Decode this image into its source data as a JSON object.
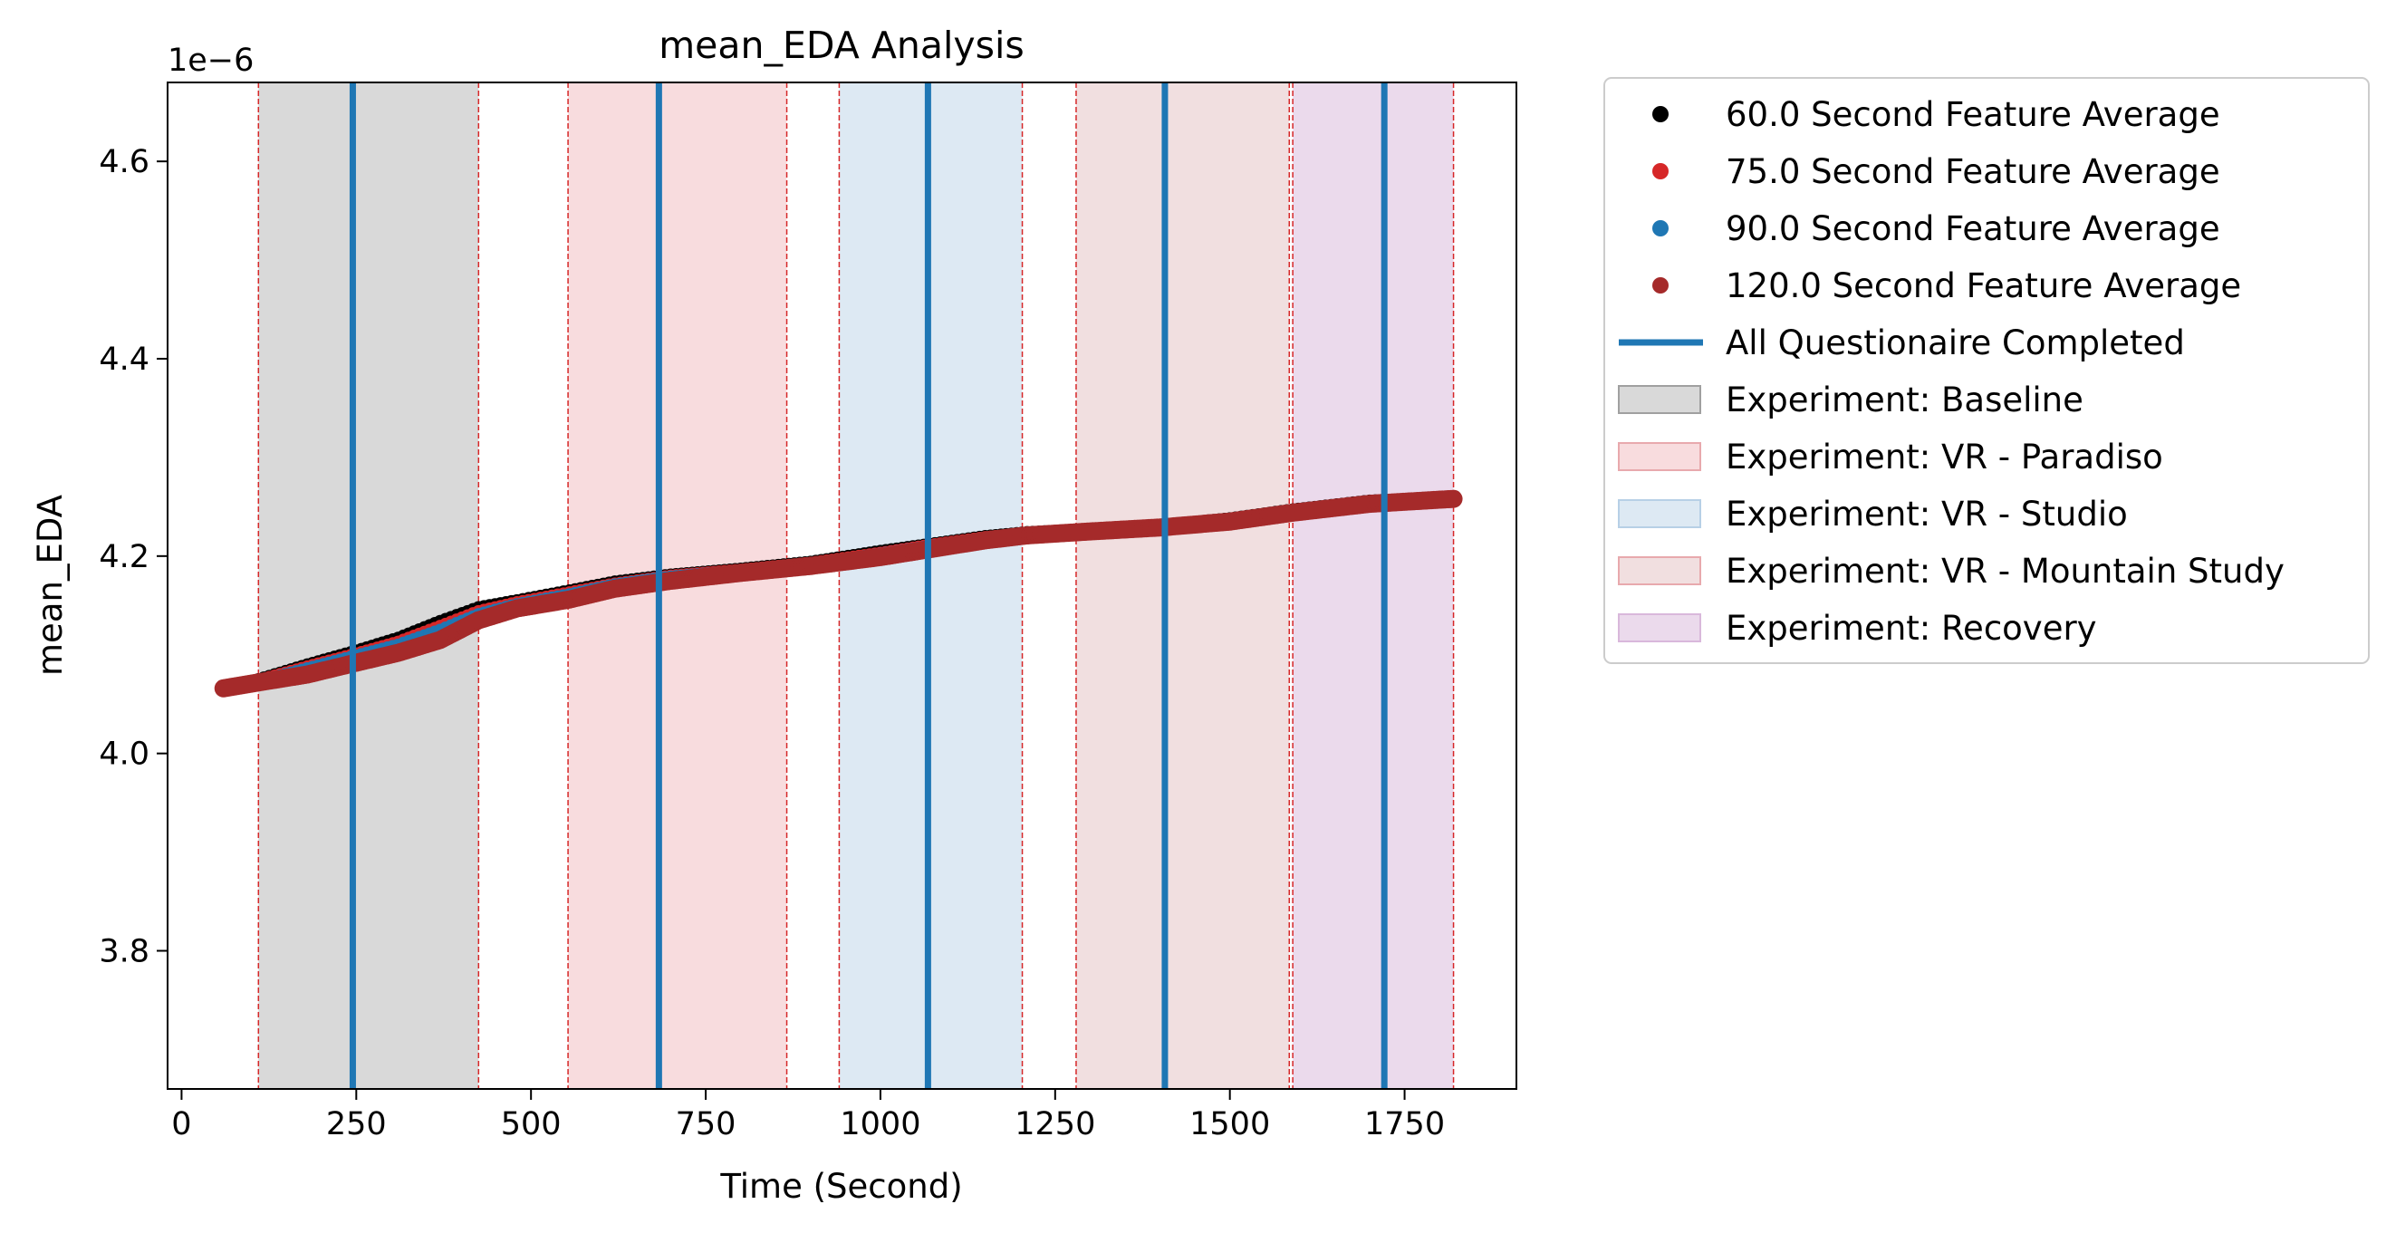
{
  "chart_data": {
    "type": "line",
    "title": "mean_EDA Analysis",
    "xlabel": "Time (Second)",
    "ylabel": "mean_EDA",
    "y_offset_label": "1e−6",
    "xlim": [
      -20,
      1910
    ],
    "ylim": [
      3.66e-06,
      4.68e-06
    ],
    "x_ticks": [
      0,
      250,
      500,
      750,
      1000,
      1250,
      1500,
      1750
    ],
    "x_tick_labels": [
      "0",
      "250",
      "500",
      "750",
      "1000",
      "1250",
      "1500",
      "1750"
    ],
    "y_ticks": [
      3.8e-06,
      4e-06,
      4.2e-06,
      4.4e-06,
      4.6e-06
    ],
    "y_tick_labels": [
      "3.8",
      "4.0",
      "4.2",
      "4.4",
      "4.6"
    ],
    "grid": false,
    "legend_position": "outside-right",
    "series": [
      {
        "name": "60.0 Second Feature Average",
        "color": "#000000",
        "x": [
          60,
          110,
          180,
          250,
          310,
          370,
          425,
          480,
          555,
          620,
          700,
          800,
          900,
          1000,
          1070,
          1150,
          1210,
          1300,
          1400,
          1500,
          1590,
          1700,
          1820
        ],
        "y": [
          4.066e-06,
          4.075e-06,
          4.09e-06,
          4.104e-06,
          4.117e-06,
          4.134e-06,
          4.148e-06,
          4.155e-06,
          4.165e-06,
          4.174e-06,
          4.181e-06,
          4.187e-06,
          4.194e-06,
          4.205e-06,
          4.212e-06,
          4.22e-06,
          4.224e-06,
          4.227e-06,
          4.231e-06,
          4.238e-06,
          4.247e-06,
          4.256e-06,
          4.259e-06
        ]
      },
      {
        "name": "75.0 Second Feature Average",
        "color": "#d62728",
        "x": [
          60,
          110,
          180,
          250,
          310,
          370,
          425,
          480,
          555,
          620,
          700,
          800,
          900,
          1000,
          1070,
          1150,
          1210,
          1300,
          1400,
          1500,
          1590,
          1700,
          1820
        ],
        "y": [
          4.066e-06,
          4.074e-06,
          4.088e-06,
          4.101e-06,
          4.113e-06,
          4.129e-06,
          4.144e-06,
          4.153e-06,
          4.163e-06,
          4.172e-06,
          4.18e-06,
          4.186e-06,
          4.193e-06,
          4.203e-06,
          4.211e-06,
          4.219e-06,
          4.223e-06,
          4.227e-06,
          4.23e-06,
          4.237e-06,
          4.246e-06,
          4.255e-06,
          4.259e-06
        ]
      },
      {
        "name": "90.0 Second Feature Average",
        "color": "#1f77b4",
        "x": [
          60,
          110,
          180,
          250,
          310,
          370,
          425,
          480,
          555,
          620,
          700,
          800,
          900,
          1000,
          1070,
          1150,
          1210,
          1300,
          1400,
          1500,
          1590,
          1700,
          1820
        ],
        "y": [
          4.066e-06,
          4.073e-06,
          4.086e-06,
          4.099e-06,
          4.11e-06,
          4.125e-06,
          4.141e-06,
          4.151e-06,
          4.161e-06,
          4.171e-06,
          4.179e-06,
          4.185e-06,
          4.192e-06,
          4.202e-06,
          4.21e-06,
          4.218e-06,
          4.222e-06,
          4.226e-06,
          4.23e-06,
          4.236e-06,
          4.245e-06,
          4.254e-06,
          4.258e-06
        ]
      },
      {
        "name": "120.0 Second Feature Average",
        "color": "#a52a2a",
        "x": [
          60,
          110,
          180,
          250,
          310,
          370,
          425,
          480,
          555,
          620,
          700,
          800,
          900,
          1000,
          1070,
          1150,
          1210,
          1300,
          1400,
          1500,
          1590,
          1700,
          1820
        ],
        "y": [
          4.066e-06,
          4.072e-06,
          4.08e-06,
          4.092e-06,
          4.102e-06,
          4.115e-06,
          4.135e-06,
          4.147e-06,
          4.156e-06,
          4.167e-06,
          4.175e-06,
          4.183e-06,
          4.19e-06,
          4.199e-06,
          4.207e-06,
          4.216e-06,
          4.221e-06,
          4.225e-06,
          4.229e-06,
          4.235e-06,
          4.244e-06,
          4.253e-06,
          4.258e-06
        ]
      }
    ],
    "questionnaire_lines": {
      "name": "All Questionaire Completed",
      "color": "#1f77b4",
      "x": [
        245,
        683,
        1068,
        1407,
        1721
      ]
    },
    "experiment_phases": [
      {
        "name": "Experiment: Baseline",
        "start": 110,
        "end": 425,
        "color": "#d9d9d9",
        "opacity": 1
      },
      {
        "name": "Experiment: VR - Paradiso",
        "start": 553,
        "end": 866,
        "color": "#f8dcde",
        "opacity": 1
      },
      {
        "name": "Experiment: VR - Studio",
        "start": 941,
        "end": 1203,
        "color": "#dde9f3",
        "opacity": 1
      },
      {
        "name": "Experiment: VR - Mountain Study",
        "start": 1280,
        "end": 1585,
        "color": "#f1dfe0",
        "opacity": 1
      },
      {
        "name": "Experiment: Recovery",
        "start": 1590,
        "end": 1820,
        "color": "#ebdaec",
        "opacity": 1
      }
    ],
    "phase_boundaries": {
      "color": "#d62728",
      "x": [
        110,
        425,
        553,
        866,
        941,
        1203,
        1280,
        1585,
        1590,
        1820
      ]
    }
  }
}
